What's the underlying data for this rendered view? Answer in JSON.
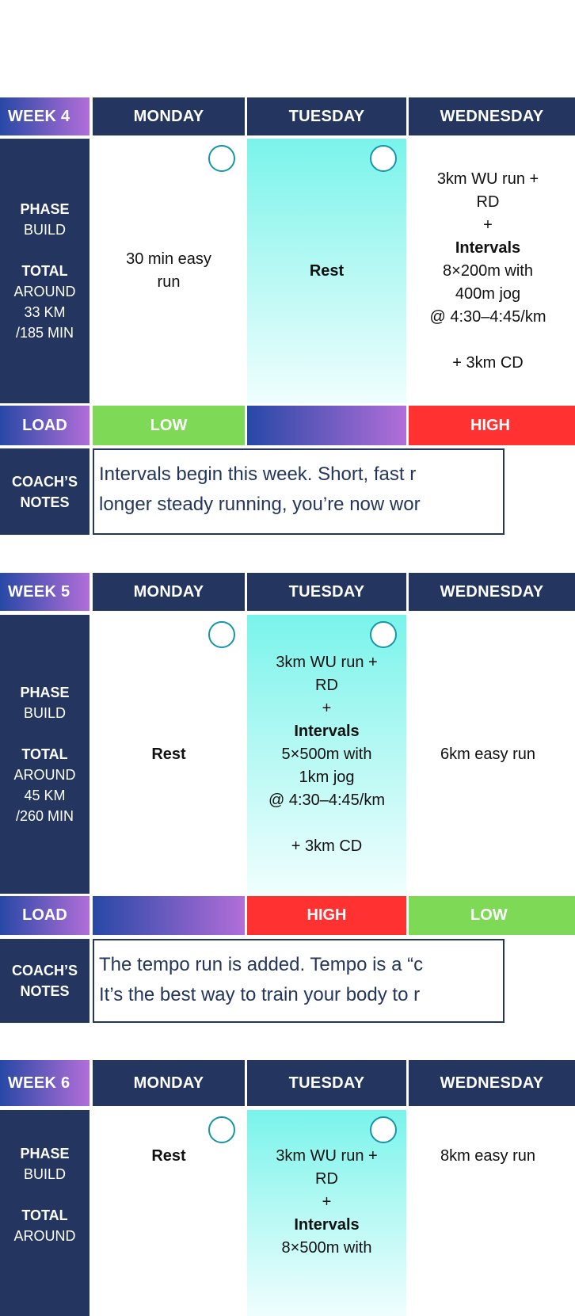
{
  "colors": {
    "navy": "#243660",
    "low": "#7ed957",
    "high": "#ff3131",
    "gradient_start": "#2748a6",
    "gradient_end": "#b26ed9",
    "rest_cell_top": "#79f4eb",
    "checkbox": "#1596a6"
  },
  "labels": {
    "phase": "PHASE",
    "total": "TOTAL",
    "load": "LOAD",
    "coach_notes_1": "COACH’S",
    "coach_notes_2": "NOTES"
  },
  "days": [
    "MONDAY",
    "TUESDAY",
    "WEDNESDAY"
  ],
  "weeks": [
    {
      "title": "WEEK 4",
      "phase": "BUILD",
      "total": [
        "AROUND",
        "33 KM",
        "/185 MIN"
      ],
      "cells": [
        {
          "style": "white",
          "lines": [
            {
              "t": "30 min easy"
            },
            {
              "t": "run"
            }
          ]
        },
        {
          "style": "cyan",
          "lines": [
            {
              "t": "Rest",
              "b": true
            }
          ]
        },
        {
          "style": "white",
          "lines": [
            {
              "t": "3km WU run +"
            },
            {
              "t": "RD"
            },
            {
              "t": "+"
            },
            {
              "t": "Intervals",
              "b": true
            },
            {
              "t": "8×200m with"
            },
            {
              "t": "400m jog"
            },
            {
              "t": "@ 4:30–4:45/km"
            },
            {
              "t": ""
            },
            {
              "t": "+ 3km CD"
            }
          ]
        }
      ],
      "loads": [
        {
          "level": "LOW",
          "kind": "low"
        },
        {
          "level": "",
          "kind": "gradient"
        },
        {
          "level": "HIGH",
          "kind": "high"
        }
      ],
      "notes": [
        "Intervals begin this week. Short, fast r",
        "longer steady running, you’re now wor"
      ]
    },
    {
      "title": "WEEK 5",
      "phase": "BUILD",
      "total": [
        "AROUND",
        "45 KM",
        "/260 MIN"
      ],
      "cells": [
        {
          "style": "white",
          "lines": [
            {
              "t": "Rest",
              "b": true
            }
          ]
        },
        {
          "style": "cyan",
          "lines": [
            {
              "t": "3km WU run +"
            },
            {
              "t": "RD"
            },
            {
              "t": "+"
            },
            {
              "t": "Intervals",
              "b": true
            },
            {
              "t": "5×500m with"
            },
            {
              "t": "1km jog"
            },
            {
              "t": "@ 4:30–4:45/km"
            },
            {
              "t": ""
            },
            {
              "t": "+ 3km CD"
            }
          ]
        },
        {
          "style": "white",
          "lines": [
            {
              "t": "6km easy run"
            }
          ]
        }
      ],
      "loads": [
        {
          "level": "",
          "kind": "gradient"
        },
        {
          "level": "HIGH",
          "kind": "high"
        },
        {
          "level": "LOW",
          "kind": "low"
        }
      ],
      "notes": [
        "The tempo run is added. Tempo is a “c",
        "It’s the best way to train your body to r"
      ]
    },
    {
      "title": "WEEK 6",
      "phase": "BUILD",
      "total": [
        "AROUND"
      ],
      "cells": [
        {
          "style": "white",
          "lines": [
            {
              "t": "Rest",
              "b": true
            }
          ]
        },
        {
          "style": "cyan",
          "lines": [
            {
              "t": "3km WU run +"
            },
            {
              "t": "RD"
            },
            {
              "t": "+"
            },
            {
              "t": "Intervals",
              "b": true
            },
            {
              "t": "8×500m with"
            }
          ]
        },
        {
          "style": "white",
          "lines": [
            {
              "t": "8km easy run"
            }
          ]
        }
      ]
    }
  ]
}
